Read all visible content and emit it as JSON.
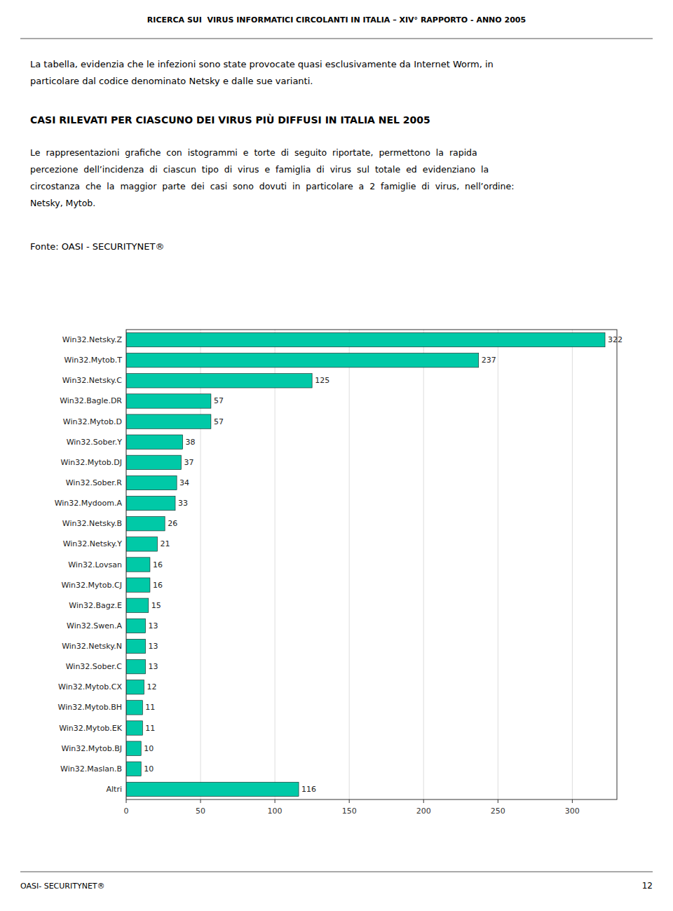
{
  "chart_data": {
    "type": "bar",
    "orientation": "horizontal",
    "title": "CASI RILEVATI PER CIASCUNO DEI VIRUS PIÙ DIFFUSI IN ITALIA NEL 2005",
    "annotations": [
      "RICERCA SUI  VIRUS INFORMATICI CIRCOLANTI IN ITALIA – XIV° RAPPORTO - ANNO 2005",
      "La tabella, evidenzia che le infezioni sono state provocate quasi esclusivamente da Internet Worm, in",
      "particolare dal codice denominato Netsky e dalle sue varianti.",
      "Le  rappresentazioni  grafiche  con  istogrammi  e  torte  di  seguito  riportate,  permettono  la  rapida",
      "percezione  dell’incidenza  di  ciascun  tipo  di  virus  e  famiglia  di  virus  sul  totale  ed  evidenziano  la",
      "circostanza  che  la  maggior  parte  dei  casi  sono  dovuti  in  particolare  a  2  famiglie  di  virus,  nell’ordine:",
      "Netsky, Mytob.",
      "Fonte: OASI - SECURITYNET®",
      "OASI- SECURITYNET®",
      "12"
    ],
    "categories": [
      "Win32.Netsky.Z",
      "Win32.Mytob.T",
      "Win32.Netsky.C",
      "Win32.Bagle.DR",
      "Win32.Mytob.D",
      "Win32.Sober.Y",
      "Win32.Mytob.DJ",
      "Win32.Sober.R",
      "Win32.Mydoom.A",
      "Win32.Netsky.B",
      "Win32.Netsky.Y",
      "Win32.Lovsan",
      "Win32.Mytob.CJ",
      "Win32.Bagz.E",
      "Win32.Swen.A",
      "Win32.Netsky.N",
      "Win32.Sober.C",
      "Win32.Mytob.CX",
      "Win32.Mytob.BH",
      "Win32.Mytob.EK",
      "Win32.Mytob.BJ",
      "Win32.Maslan.B",
      "Altri"
    ],
    "values": [
      322,
      237,
      125,
      57,
      57,
      38,
      37,
      34,
      33,
      26,
      21,
      16,
      16,
      15,
      13,
      13,
      13,
      12,
      11,
      11,
      10,
      10,
      116
    ],
    "color": "#00C9A7",
    "xlim": [
      0,
      330
    ],
    "xticks": [
      0,
      50,
      100,
      150,
      200,
      250,
      300
    ],
    "grid": true,
    "data_labels": true
  }
}
